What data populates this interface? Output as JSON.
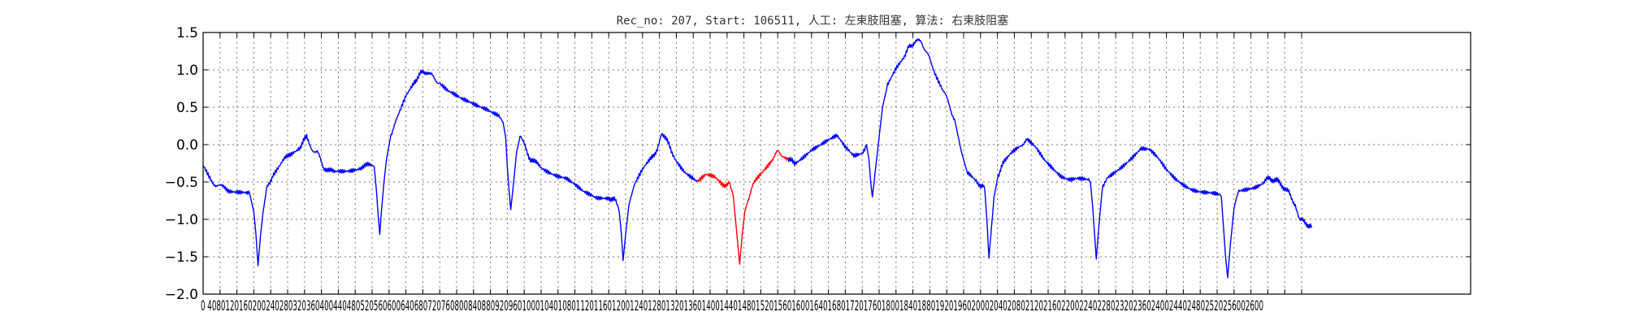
{
  "chart_data": {
    "type": "line",
    "title": "Rec_no: 207, Start: 106511, 人工: 左束肢阻塞, 算法: 右束肢阻塞",
    "xlabel": "",
    "ylabel": "",
    "xlim": [
      0,
      3000
    ],
    "ylim": [
      -2.0,
      1.5
    ],
    "grid": true,
    "yticks": [
      -2.0,
      -1.5,
      -1.0,
      -0.5,
      0.0,
      0.5,
      1.0,
      1.5
    ],
    "ytick_labels": [
      "−2.0",
      "−1.5",
      "−1.0",
      "−0.5",
      "0.0",
      "0.5",
      "1.0",
      "1.5"
    ],
    "xticks": [
      0,
      40,
      80,
      120,
      160,
      200,
      240,
      280,
      320,
      360,
      400,
      440,
      480,
      520,
      560,
      600,
      640,
      680,
      720,
      760,
      800,
      840,
      880,
      920,
      960,
      1000,
      1040,
      1080,
      1120,
      1160,
      1200,
      1240,
      1280,
      1320,
      1360,
      1400,
      1440,
      1480,
      1520,
      1560,
      1600,
      1640,
      1680,
      1720,
      1760,
      1800,
      1840,
      1880,
      1920,
      1960,
      2000,
      2040,
      2080,
      2120,
      2160,
      2200,
      2240,
      2280,
      2320,
      2360,
      2400,
      2440,
      2480,
      2520,
      2560,
      2600
    ],
    "xtick_labels_row": "0 4080120160200240280320360400440480520560600640680720760800840880920960100010401080112011601200124012801320136014001440148015201560160016401680172017601800184018801920196020002040208021202160220022402280232023602400244024802520256002600",
    "series": [
      {
        "color": "#0000ff",
        "points": [
          [
            0,
            -0.3
          ],
          [
            10,
            -0.4
          ],
          [
            20,
            -0.5
          ],
          [
            35,
            -0.55
          ],
          [
            60,
            -0.6
          ],
          [
            90,
            -0.62
          ],
          [
            110,
            -0.65
          ],
          [
            120,
            -0.9
          ],
          [
            125,
            -1.2
          ],
          [
            130,
            -1.62
          ],
          [
            136,
            -1.2
          ],
          [
            142,
            -0.9
          ],
          [
            150,
            -0.6
          ],
          [
            165,
            -0.4
          ],
          [
            185,
            -0.25
          ],
          [
            210,
            -0.1
          ],
          [
            230,
            -0.02
          ],
          [
            245,
            0.1
          ],
          [
            255,
            -0.05
          ],
          [
            270,
            -0.1
          ],
          [
            285,
            -0.3
          ],
          [
            310,
            -0.38
          ],
          [
            340,
            -0.35
          ],
          [
            370,
            -0.3
          ],
          [
            395,
            -0.28
          ],
          [
            405,
            -0.3
          ],
          [
            410,
            -0.6
          ],
          [
            415,
            -1.0
          ],
          [
            418,
            -1.2
          ],
          [
            422,
            -0.9
          ],
          [
            428,
            -0.5
          ],
          [
            434,
            -0.2
          ],
          [
            445,
            0.15
          ],
          [
            460,
            0.35
          ],
          [
            480,
            0.65
          ],
          [
            500,
            0.85
          ],
          [
            515,
            0.95
          ],
          [
            530,
            0.98
          ],
          [
            545,
            0.9
          ],
          [
            560,
            0.82
          ],
          [
            580,
            0.7
          ],
          [
            610,
            0.6
          ],
          [
            640,
            0.55
          ],
          [
            670,
            0.5
          ],
          [
            700,
            0.4
          ],
          [
            710,
            0.3
          ],
          [
            716,
            0.1
          ],
          [
            720,
            -0.3
          ],
          [
            724,
            -0.6
          ],
          [
            728,
            -0.87
          ],
          [
            735,
            -0.5
          ],
          [
            742,
            -0.1
          ],
          [
            750,
            0.1
          ],
          [
            760,
            0.0
          ],
          [
            775,
            -0.2
          ],
          [
            800,
            -0.3
          ],
          [
            830,
            -0.38
          ],
          [
            860,
            -0.45
          ],
          [
            880,
            -0.55
          ],
          [
            900,
            -0.65
          ],
          [
            930,
            -0.72
          ],
          [
            960,
            -0.7
          ],
          [
            975,
            -0.75
          ],
          [
            985,
            -0.9
          ],
          [
            990,
            -1.2
          ],
          [
            994,
            -1.55
          ],
          [
            1000,
            -1.2
          ],
          [
            1008,
            -0.8
          ],
          [
            1020,
            -0.55
          ],
          [
            1040,
            -0.35
          ],
          [
            1060,
            -0.2
          ],
          [
            1075,
            -0.05
          ],
          [
            1085,
            0.15
          ],
          [
            1095,
            0.08
          ],
          [
            1110,
            -0.1
          ],
          [
            1120,
            -0.2
          ],
          [
            1140,
            -0.35
          ],
          [
            1160,
            -0.45
          ],
          [
            1170,
            -0.5
          ]
        ]
      },
      {
        "color": "#ff0000",
        "points": [
          [
            1170,
            -0.5
          ],
          [
            1190,
            -0.42
          ],
          [
            1210,
            -0.45
          ],
          [
            1230,
            -0.55
          ],
          [
            1245,
            -0.5
          ],
          [
            1255,
            -0.7
          ],
          [
            1260,
            -1.0
          ],
          [
            1265,
            -1.3
          ],
          [
            1270,
            -1.6
          ],
          [
            1276,
            -1.2
          ],
          [
            1282,
            -0.9
          ],
          [
            1292,
            -0.7
          ],
          [
            1305,
            -0.5
          ],
          [
            1325,
            -0.35
          ],
          [
            1345,
            -0.2
          ],
          [
            1360,
            -0.1
          ],
          [
            1375,
            -0.15
          ],
          [
            1385,
            -0.2
          ]
        ]
      },
      {
        "color": "#0000ff",
        "points": [
          [
            1385,
            -0.2
          ],
          [
            1400,
            -0.25
          ],
          [
            1420,
            -0.15
          ],
          [
            1440,
            -0.05
          ],
          [
            1460,
            0.0
          ],
          [
            1480,
            0.05
          ],
          [
            1500,
            0.1
          ],
          [
            1520,
            -0.05
          ],
          [
            1540,
            -0.15
          ],
          [
            1560,
            -0.1
          ],
          [
            1570,
            0.0
          ],
          [
            1576,
            -0.2
          ],
          [
            1580,
            -0.5
          ],
          [
            1584,
            -0.7
          ],
          [
            1590,
            -0.4
          ],
          [
            1598,
            0.0
          ],
          [
            1608,
            0.5
          ],
          [
            1620,
            0.8
          ],
          [
            1640,
            1.0
          ],
          [
            1660,
            1.15
          ],
          [
            1670,
            1.3
          ],
          [
            1685,
            1.38
          ],
          [
            1700,
            1.38
          ],
          [
            1715,
            1.2
          ],
          [
            1730,
            1.0
          ],
          [
            1750,
            0.75
          ],
          [
            1765,
            0.55
          ],
          [
            1780,
            0.3
          ],
          [
            1795,
            -0.1
          ],
          [
            1810,
            -0.4
          ],
          [
            1830,
            -0.5
          ],
          [
            1845,
            -0.55
          ],
          [
            1850,
            -0.6
          ],
          [
            1855,
            -1.0
          ],
          [
            1860,
            -1.52
          ],
          [
            1866,
            -1.1
          ],
          [
            1872,
            -0.7
          ],
          [
            1882,
            -0.4
          ],
          [
            1895,
            -0.25
          ],
          [
            1915,
            -0.1
          ],
          [
            1935,
            0.0
          ],
          [
            1950,
            0.05
          ],
          [
            1970,
            -0.05
          ],
          [
            1990,
            -0.2
          ],
          [
            2010,
            -0.3
          ],
          [
            2030,
            -0.4
          ],
          [
            2050,
            -0.45
          ],
          [
            2070,
            -0.45
          ],
          [
            2090,
            -0.48
          ],
          [
            2100,
            -0.5
          ],
          [
            2105,
            -0.8
          ],
          [
            2110,
            -1.2
          ],
          [
            2114,
            -1.53
          ],
          [
            2120,
            -1.1
          ],
          [
            2128,
            -0.6
          ],
          [
            2140,
            -0.45
          ],
          [
            2160,
            -0.35
          ],
          [
            2180,
            -0.25
          ],
          [
            2200,
            -0.15
          ],
          [
            2220,
            -0.05
          ],
          [
            2240,
            -0.08
          ],
          [
            2260,
            -0.2
          ],
          [
            2280,
            -0.35
          ],
          [
            2300,
            -0.45
          ],
          [
            2320,
            -0.52
          ],
          [
            2340,
            -0.58
          ],
          [
            2360,
            -0.62
          ],
          [
            2380,
            -0.65
          ],
          [
            2400,
            -0.68
          ],
          [
            2410,
            -0.7
          ],
          [
            2415,
            -1.1
          ],
          [
            2420,
            -1.5
          ],
          [
            2425,
            -1.78
          ],
          [
            2432,
            -1.3
          ],
          [
            2440,
            -0.85
          ],
          [
            2450,
            -0.62
          ],
          [
            2470,
            -0.58
          ],
          [
            2490,
            -0.55
          ],
          [
            2510,
            -0.5
          ],
          [
            2525,
            -0.45
          ],
          [
            2540,
            -0.48
          ],
          [
            2555,
            -0.55
          ],
          [
            2570,
            -0.65
          ],
          [
            2585,
            -0.8
          ],
          [
            2595,
            -1.0
          ],
          [
            2610,
            -1.05
          ],
          [
            2625,
            -1.1
          ]
        ]
      }
    ]
  }
}
